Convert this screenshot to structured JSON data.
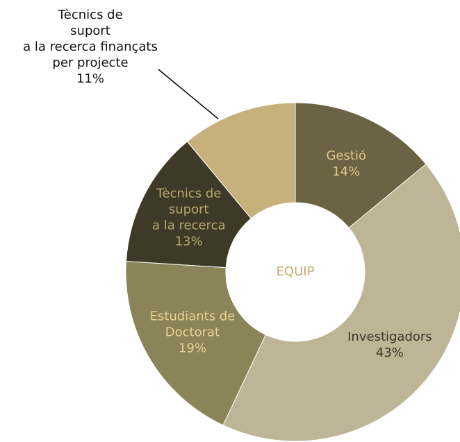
{
  "chart_data": {
    "type": "pie",
    "donut": true,
    "center_label": "EQUIP",
    "categories": [
      "Gestió",
      "Investigadors",
      "Estudiants de\nDoctorat",
      "Tècnics de\nsuport\na la recerca",
      "Tècnics de\nsuport\na la recerca finançats\nper projecte"
    ],
    "values": [
      14,
      43,
      19,
      13,
      11
    ],
    "value_labels": [
      "14%",
      "43%",
      "19%",
      "13%",
      "11%"
    ],
    "colors": [
      "#6b6344",
      "#bdb596",
      "#8a8458",
      "#3f3a28",
      "#c6b17c"
    ],
    "label_colors": [
      "#e2cb8c",
      "#3a3526",
      "#ead292",
      "#b9a670",
      "#111111"
    ],
    "label_outside": [
      false,
      false,
      false,
      false,
      true
    ]
  }
}
